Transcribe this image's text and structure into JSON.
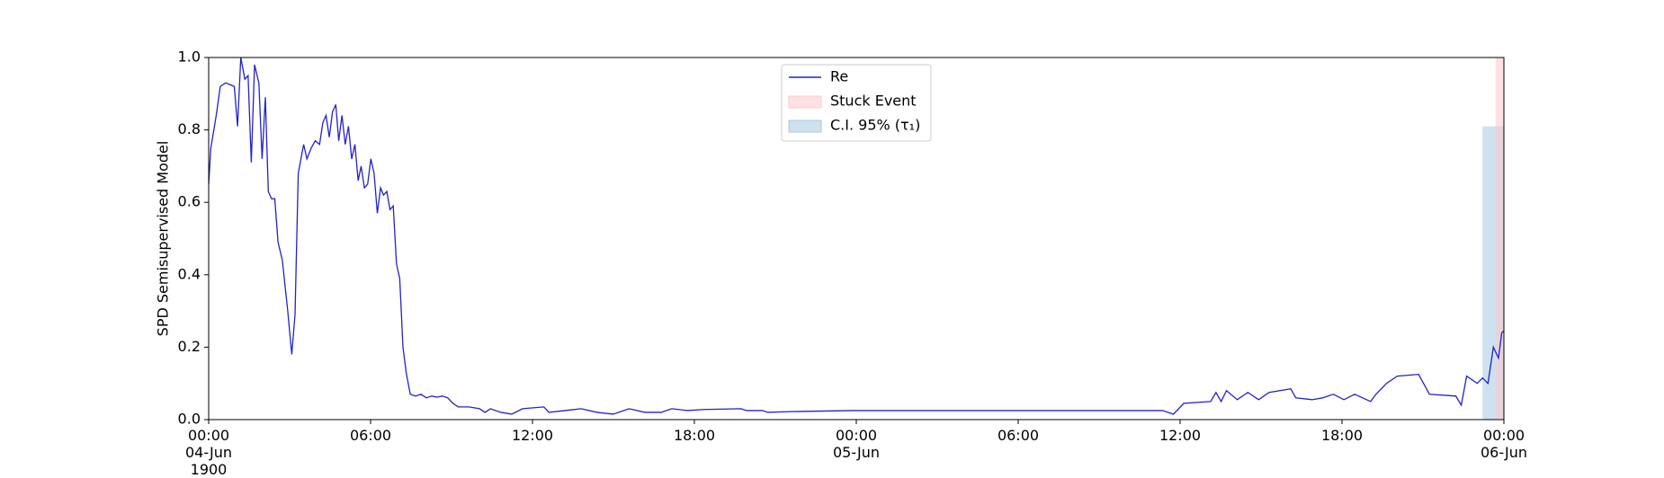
{
  "chart_data": {
    "type": "line",
    "ylabel": "SPD Semisupervised Model",
    "x": [
      0,
      0.08,
      0.28,
      0.43,
      0.63,
      0.95,
      1.07,
      1.19,
      1.34,
      1.46,
      1.58,
      1.7,
      1.86,
      1.98,
      2.1,
      2.21,
      2.33,
      2.45,
      2.57,
      2.73,
      2.93,
      3.08,
      3.2,
      3.32,
      3.52,
      3.64,
      3.8,
      3.95,
      4.11,
      4.23,
      4.35,
      4.47,
      4.59,
      4.71,
      4.82,
      4.94,
      5.06,
      5.18,
      5.3,
      5.42,
      5.54,
      5.65,
      5.77,
      5.89,
      6.01,
      6.13,
      6.25,
      6.37,
      6.48,
      6.6,
      6.72,
      6.84,
      6.96,
      7.08,
      7.2,
      7.32,
      7.47,
      7.67,
      7.87,
      8.07,
      8.26,
      8.46,
      8.66,
      8.86,
      9.05,
      9.25,
      9.65,
      10.04,
      10.24,
      10.44,
      10.83,
      11.23,
      11.63,
      12.42,
      12.61,
      13.21,
      13.8,
      14.39,
      14.99,
      15.58,
      16.17,
      16.77,
      17.16,
      17.75,
      18.35,
      19.73,
      19.93,
      20.52,
      20.72,
      21.51,
      23.88,
      31.79,
      35.35,
      35.75,
      36.14,
      37.13,
      37.33,
      37.52,
      37.72,
      38.12,
      38.51,
      38.91,
      39.3,
      39.7,
      40.1,
      40.29,
      40.89,
      41.28,
      41.68,
      42.07,
      42.47,
      43.06,
      43.26,
      43.65,
      44.05,
      44.84,
      45.24,
      46.22,
      46.42,
      46.62,
      47.01,
      47.21,
      47.41,
      47.61,
      47.8,
      47.92,
      48.0
    ],
    "series": [
      {
        "name": "Re",
        "color": "#2222cc",
        "values": [
          0.65,
          0.75,
          0.84,
          0.92,
          0.93,
          0.92,
          0.81,
          1.0,
          0.94,
          0.95,
          0.71,
          0.98,
          0.93,
          0.72,
          0.89,
          0.63,
          0.61,
          0.61,
          0.49,
          0.44,
          0.3,
          0.18,
          0.29,
          0.68,
          0.76,
          0.72,
          0.75,
          0.77,
          0.76,
          0.82,
          0.84,
          0.78,
          0.85,
          0.87,
          0.77,
          0.84,
          0.76,
          0.81,
          0.72,
          0.76,
          0.66,
          0.7,
          0.64,
          0.65,
          0.72,
          0.68,
          0.57,
          0.64,
          0.62,
          0.63,
          0.58,
          0.59,
          0.43,
          0.39,
          0.2,
          0.13,
          0.07,
          0.065,
          0.07,
          0.06,
          0.065,
          0.062,
          0.065,
          0.06,
          0.045,
          0.035,
          0.035,
          0.03,
          0.02,
          0.03,
          0.02,
          0.015,
          0.03,
          0.035,
          0.02,
          0.025,
          0.03,
          0.02,
          0.015,
          0.03,
          0.02,
          0.02,
          0.03,
          0.025,
          0.028,
          0.03,
          0.025,
          0.025,
          0.02,
          0.022,
          0.025,
          0.025,
          0.025,
          0.015,
          0.045,
          0.05,
          0.075,
          0.05,
          0.08,
          0.055,
          0.075,
          0.055,
          0.075,
          0.08,
          0.085,
          0.06,
          0.055,
          0.06,
          0.07,
          0.055,
          0.07,
          0.05,
          0.07,
          0.1,
          0.12,
          0.125,
          0.07,
          0.065,
          0.04,
          0.12,
          0.1,
          0.115,
          0.1,
          0.2,
          0.17,
          0.24,
          0.245
        ]
      }
    ],
    "spans": [
      {
        "name": "C.I. 95% (τ₁)",
        "color": "#a6c8e0",
        "x": [
          47.21,
          48
        ],
        "y": [
          0,
          0.81
        ]
      },
      {
        "name": "Stuck Event",
        "color": "#ffc8cc",
        "x": [
          47.69,
          48
        ],
        "y": [
          0,
          1
        ]
      }
    ],
    "xlim": [
      0,
      48
    ],
    "xticks": [
      {
        "value": 0,
        "label": "00:00\n04-Jun\n1900"
      },
      {
        "value": 6,
        "label": "06:00"
      },
      {
        "value": 12,
        "label": "12:00"
      },
      {
        "value": 18,
        "label": "18:00"
      },
      {
        "value": 24,
        "label": "00:00\n05-Jun"
      },
      {
        "value": 30,
        "label": "06:00"
      },
      {
        "value": 36,
        "label": "12:00"
      },
      {
        "value": 42,
        "label": "18:00"
      },
      {
        "value": 48,
        "label": "00:00\n06-Jun"
      }
    ],
    "ylim": [
      0,
      1
    ],
    "yticks": [
      {
        "value": 0,
        "label": "0.0"
      },
      {
        "value": 0.2,
        "label": "0.2"
      },
      {
        "value": 0.4,
        "label": "0.4"
      },
      {
        "value": 0.6,
        "label": "0.6"
      },
      {
        "value": 0.8,
        "label": "0.8"
      },
      {
        "value": 1,
        "label": "1.0"
      }
    ],
    "legend": "upper center"
  }
}
